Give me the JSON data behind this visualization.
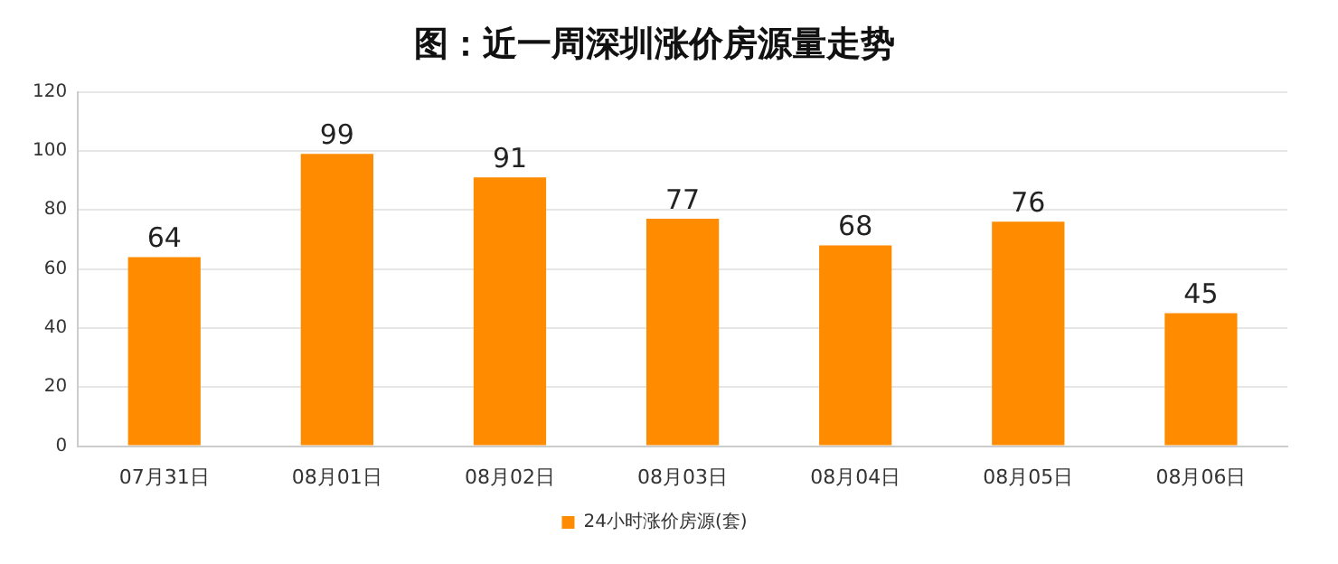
{
  "chart_data": {
    "type": "bar",
    "title": "图：近一周深圳涨价房源量走势",
    "categories": [
      "07月31日",
      "08月01日",
      "08月02日",
      "08月03日",
      "08月04日",
      "08月05日",
      "08月06日"
    ],
    "series": [
      {
        "name": "24小时涨价房源(套)",
        "color": "#ff8c00",
        "values": [
          64,
          99,
          91,
          77,
          68,
          76,
          45
        ]
      }
    ],
    "ylim": [
      0,
      120
    ],
    "yticks": [
      0,
      20,
      40,
      60,
      80,
      100,
      120
    ],
    "grid": "y",
    "legend": "bottom",
    "data_labels": true
  }
}
